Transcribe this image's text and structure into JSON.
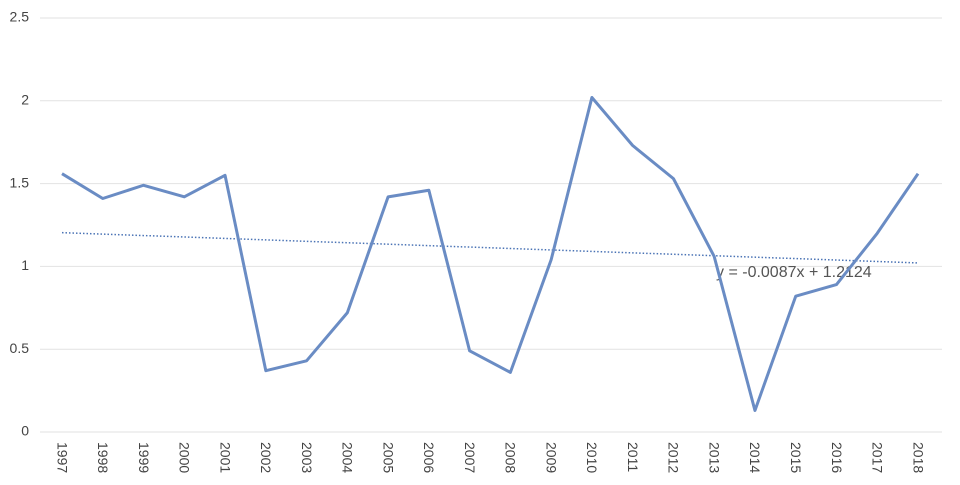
{
  "chart_data": {
    "type": "line",
    "categories": [
      "1997",
      "1998",
      "1999",
      "2000",
      "2001",
      "2002",
      "2003",
      "2004",
      "2005",
      "2006",
      "2007",
      "2008",
      "2009",
      "2010",
      "2011",
      "2012",
      "2013",
      "2014",
      "2015",
      "2016",
      "2017",
      "2018"
    ],
    "series": [
      {
        "color": "#6a8cc4",
        "values": [
          1.56,
          1.41,
          1.49,
          1.42,
          1.55,
          0.37,
          0.43,
          0.72,
          1.42,
          1.46,
          0.49,
          0.36,
          1.04,
          2.02,
          1.73,
          1.53,
          1.06,
          0.13,
          0.82,
          0.89,
          1.2,
          1.56
        ]
      }
    ],
    "trendline": {
      "label": "y = -0.0087x + 1.2124",
      "slope": -0.0087,
      "intercept": 1.2124,
      "color": "#4a73b5"
    },
    "ylim": [
      0,
      2.5
    ],
    "yticks": [
      0,
      0.5,
      1,
      1.5,
      2,
      2.5
    ],
    "grid": true
  }
}
